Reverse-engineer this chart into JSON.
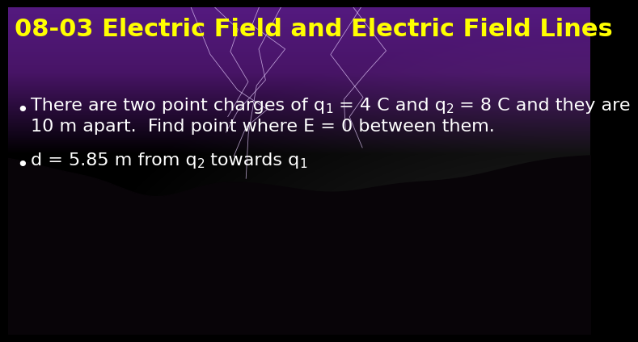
{
  "title": "08-03 Electric Field and Electric Field Lines",
  "title_color": "#FFFF00",
  "title_fontsize": 22,
  "text_color": "#FFFFFF",
  "bullet1_line1a": "There are two point charges of q",
  "bullet1_sub1": "1",
  "bullet1_line1b": " = 4 C and q",
  "bullet1_sub2": "2",
  "bullet1_line1c": " = 8 C and they are",
  "bullet1_line2": "10 m apart.  Find point where E = 0 between them.",
  "bullet2_line1a": "d = 5.85 m from q",
  "bullet2_sub1": "2",
  "bullet2_line1b": " towards q",
  "bullet2_sub2": "1",
  "body_fontsize": 16,
  "sub_fontsize": 11,
  "bg_storm_top": "#3a1a50",
  "bg_storm_mid": "#1a0825",
  "bg_bottom": "#000000",
  "bg_bottom_right_gray": "#404040"
}
